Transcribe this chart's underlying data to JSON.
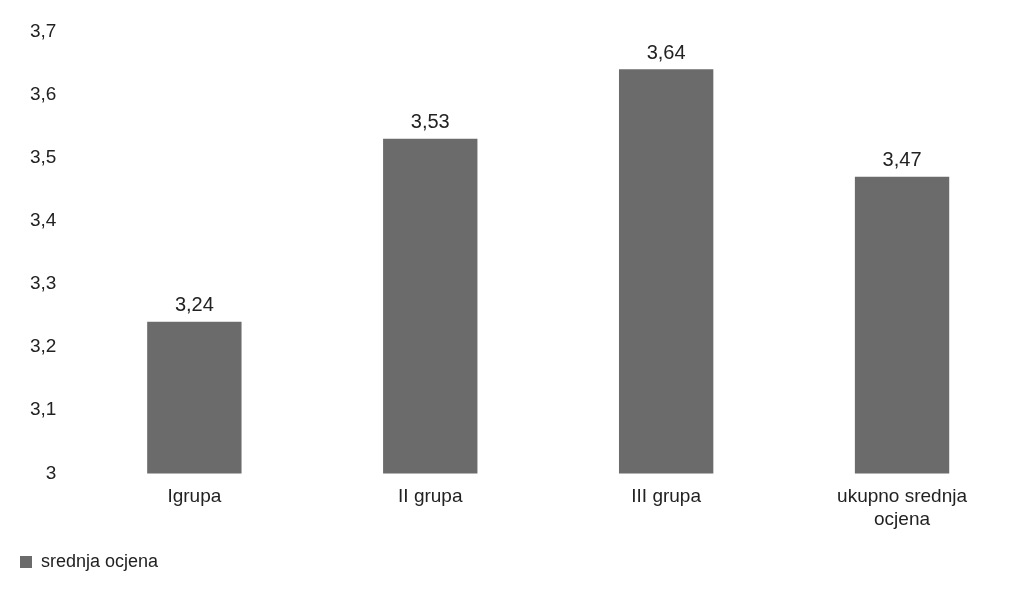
{
  "chart_data": {
    "type": "bar",
    "categories": [
      "Igrupa",
      "II grupa",
      "III grupa",
      "ukupno srednja ocjena"
    ],
    "series": [
      {
        "name": "srednja ocjena",
        "color": "#6b6b6b",
        "values": [
          3.24,
          3.53,
          3.64,
          3.47
        ],
        "value_labels": [
          "3,24",
          "3,53",
          "3,64",
          "3,47"
        ]
      }
    ],
    "ylim": [
      3,
      3.7
    ],
    "yticks": [
      3,
      {
        "value": 3.1,
        "label": "3,1"
      },
      {
        "value": 3.2,
        "label": "3,2"
      },
      {
        "value": 3.3,
        "label": "3,3"
      },
      {
        "value": 3.4,
        "label": "3,4"
      },
      {
        "value": 3.5,
        "label": "3,5"
      },
      {
        "value": 3.6,
        "label": "3,6"
      },
      {
        "value": 3.7,
        "label": "3,7"
      }
    ],
    "legend": "bottom left"
  }
}
